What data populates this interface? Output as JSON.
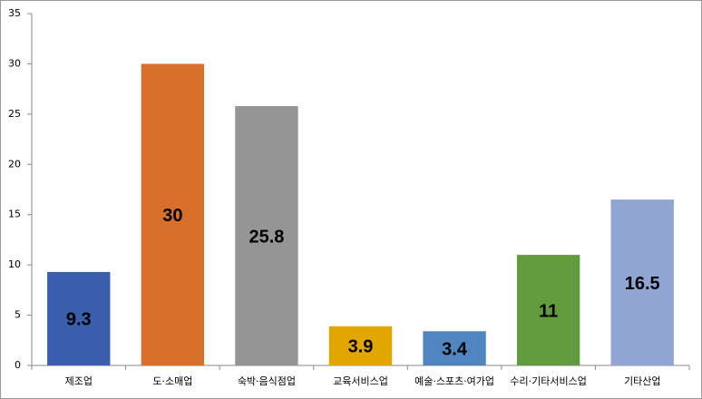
{
  "chart_data": {
    "type": "bar",
    "categories": [
      "제조업",
      "도·소매업",
      "숙박·음식점업",
      "교육서비스업",
      "예술·스포츠·여가업",
      "수리·기타서비스업",
      "기타산업"
    ],
    "values": [
      9.3,
      30,
      25.8,
      3.9,
      3.4,
      11,
      16.5
    ],
    "colors": [
      "#3a5fad",
      "#d8702b",
      "#959595",
      "#e2a600",
      "#4f86c0",
      "#639b3f",
      "#91a5d5"
    ],
    "ylim": [
      0,
      35
    ],
    "yticks": [
      0,
      5,
      10,
      15,
      20,
      25,
      30,
      35
    ],
    "grid": false
  }
}
